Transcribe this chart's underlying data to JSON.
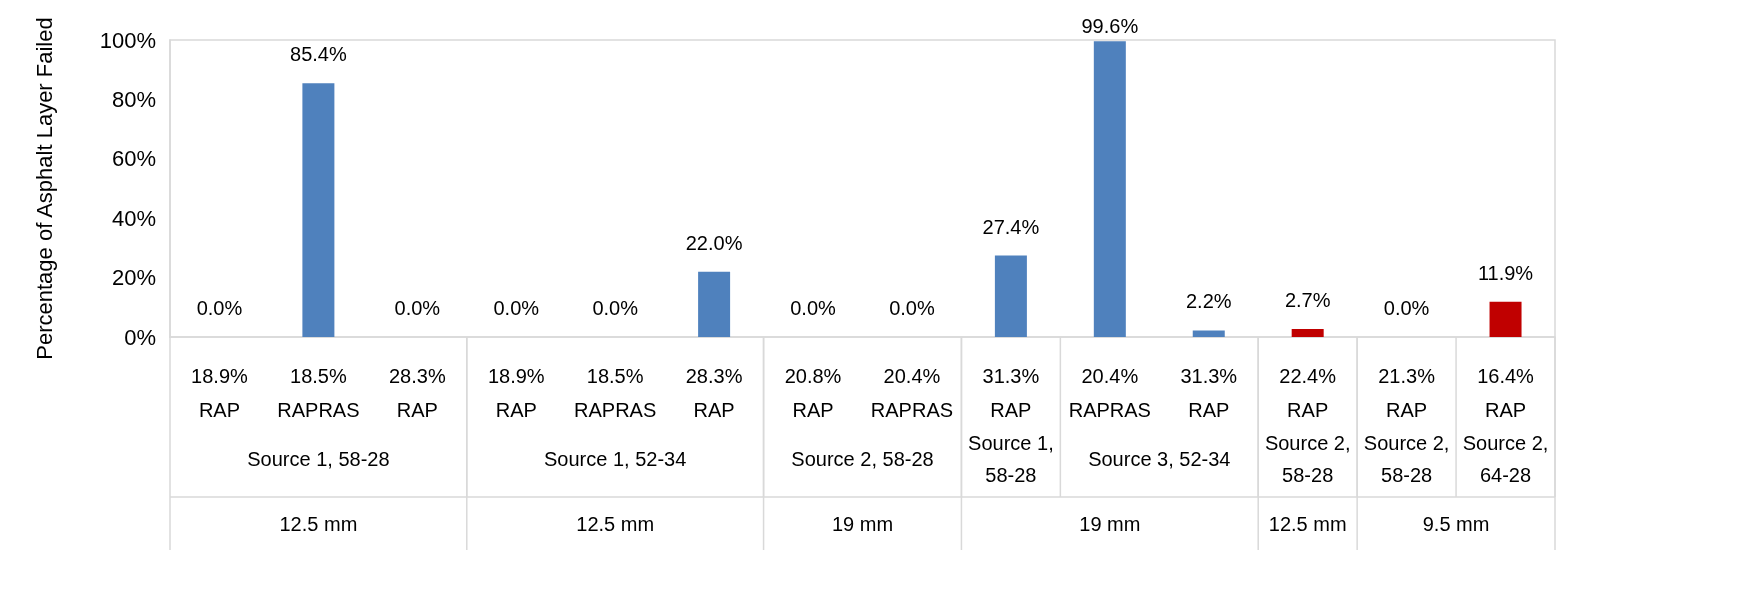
{
  "chart_data": {
    "type": "bar",
    "ylabel": "Percentage of Asphalt Layer Failed",
    "categories": [
      "18.9%\nRAP",
      "18.5%\nRAPRAS",
      "28.3%\nRAP",
      "18.9%\nRAP",
      "18.5%\nRAPRAS",
      "28.3%\nRAP",
      "20.8%\nRAP",
      "20.4%\nRAPRAS",
      "31.3%\nRAP",
      "20.4%\nRAPRAS",
      "31.3%\nRAP",
      "22.4%\nRAP",
      "21.3%\nRAP",
      "16.4%\nRAP"
    ],
    "annotations": [
      "Source 1, 58-28",
      "Source 1, 52-34",
      "Source 2, 58-28",
      "Source 1,\n58-28",
      "Source 3, 52-34",
      "Source 2,\n58-28",
      "Source 2,\n58-28",
      "Source 2,\n64-28",
      "12.5 mm",
      "12.5 mm",
      "19 mm",
      "19 mm",
      "12.5 mm",
      "9.5 mm"
    ],
    "values": [
      0,
      85.4,
      0,
      0,
      0,
      22.0,
      0,
      0,
      27.4,
      99.6,
      2.2,
      2.7,
      0,
      11.9
    ],
    "value_labels": [
      "0.0%",
      "85.4%",
      "0.0%",
      "0.0%",
      "0.0%",
      "22.0%",
      "0.0%",
      "0.0%",
      "27.4%",
      "99.6%",
      "2.2%",
      "2.7%",
      "0.0%",
      "11.9%"
    ],
    "colors": [
      "#4f81bd",
      "#4f81bd",
      "#4f81bd",
      "#4f81bd",
      "#4f81bd",
      "#4f81bd",
      "#4f81bd",
      "#4f81bd",
      "#4f81bd",
      "#4f81bd",
      "#4f81bd",
      "#c00000",
      "#c00000",
      "#c00000"
    ],
    "ylim": [
      0,
      100
    ],
    "yticks": [
      {
        "value": 0,
        "label": "0%"
      },
      {
        "value": 20,
        "label": "20%"
      },
      {
        "value": 40,
        "label": "40%"
      },
      {
        "value": 60,
        "label": "60%"
      },
      {
        "value": 80,
        "label": "80%"
      },
      {
        "value": 100,
        "label": "100%"
      }
    ],
    "grid": false
  }
}
